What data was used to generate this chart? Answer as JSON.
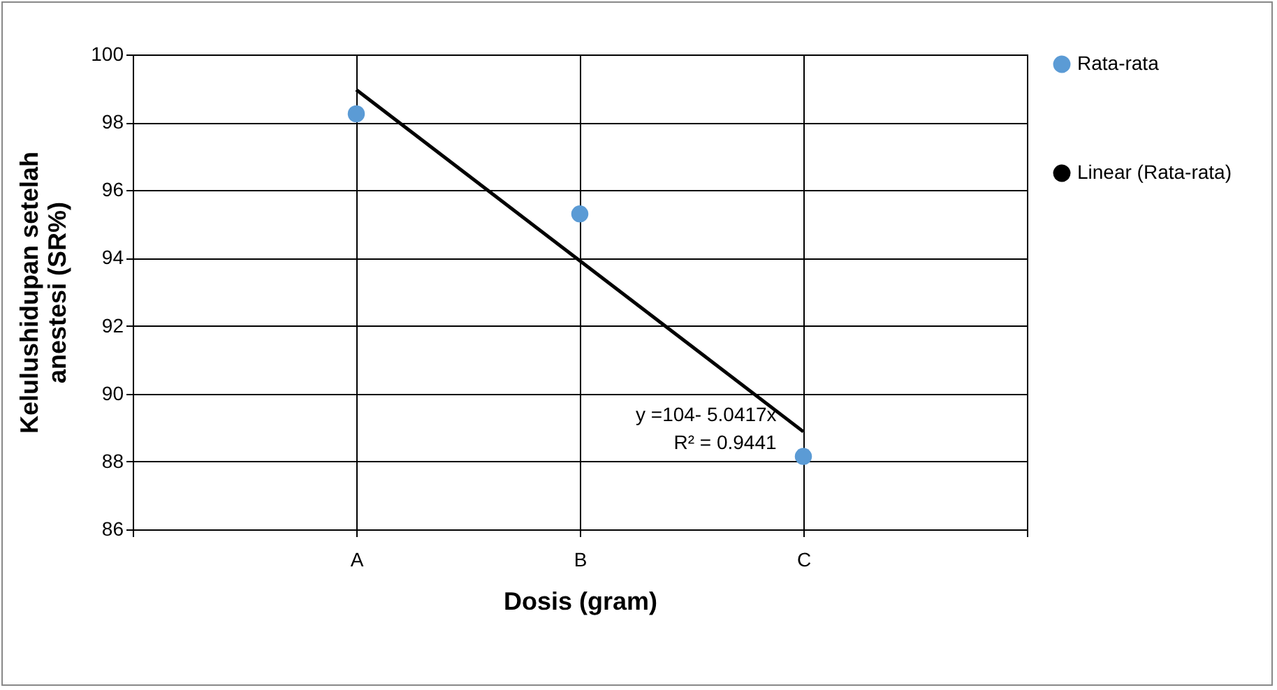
{
  "chart_data": {
    "type": "scatter",
    "xlabel": "Dosis (gram)",
    "ylabel": "Kelulushidupan setelah anestesi (SR%)",
    "categories": [
      null,
      "A",
      "B",
      "C",
      null
    ],
    "series": [
      {
        "name": "Rata-rata",
        "color": "#5b9bd5",
        "marker": "circle",
        "values": [
          null,
          98.25,
          95.3,
          88.15,
          null
        ]
      },
      {
        "name": "Linear (Rata-rata)",
        "type": "line",
        "color": "#000000",
        "x": [
          "A",
          "C"
        ],
        "values": [
          98.96,
          88.88
        ]
      }
    ],
    "ylim": [
      86,
      100
    ],
    "yticks": [
      86,
      88,
      90,
      92,
      94,
      96,
      98,
      100
    ],
    "grid": true,
    "legend": "right",
    "annotations": [
      "y =104- 5.0417x",
      "R² = 0.9441"
    ]
  }
}
